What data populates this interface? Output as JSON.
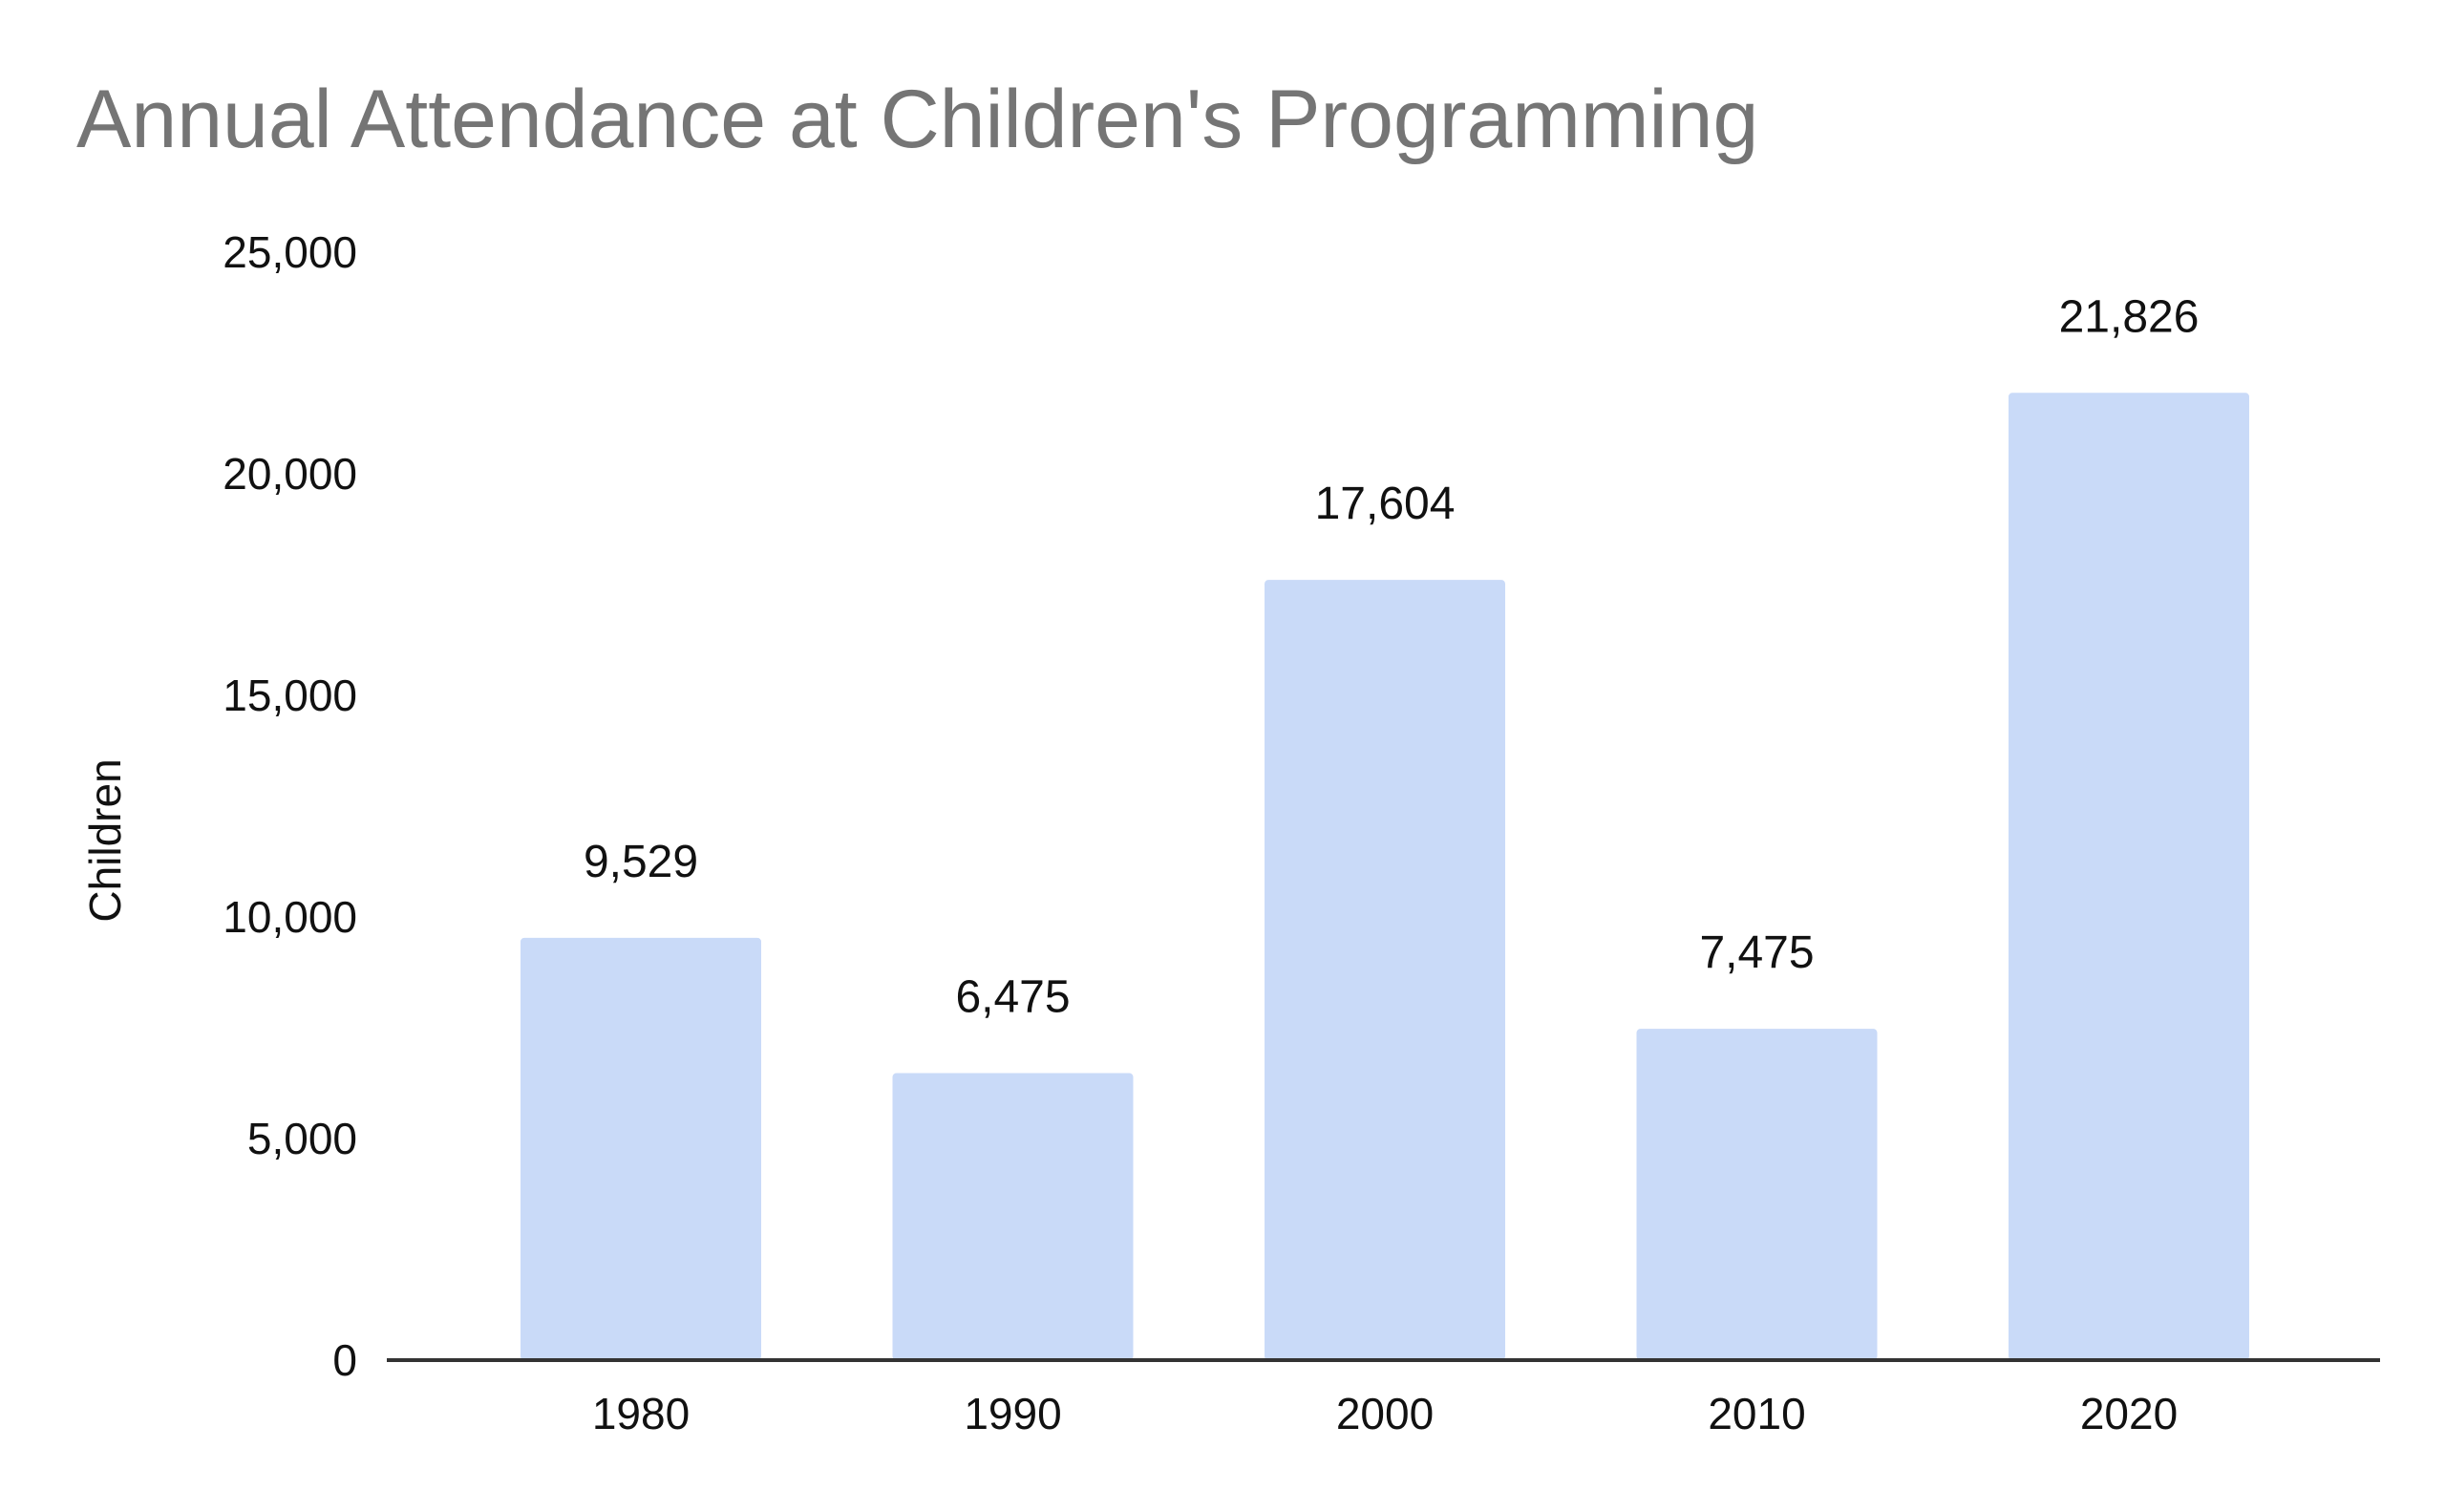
{
  "chart_data": {
    "type": "bar",
    "title": "Annual Attendance at Children's Programming",
    "xlabel": "",
    "ylabel": "Children",
    "categories": [
      "1980",
      "1990",
      "2000",
      "2010",
      "2020"
    ],
    "values": [
      9529,
      6475,
      17604,
      7475,
      21826
    ],
    "data_labels": [
      "9,529",
      "6,475",
      "17,604",
      "7,475",
      "21,826"
    ],
    "ylim": [
      0,
      25000
    ],
    "yticks": [
      0,
      5000,
      10000,
      15000,
      20000,
      25000
    ],
    "ytick_labels": [
      "0",
      "5,000",
      "10,000",
      "15,000",
      "20,000",
      "25,000"
    ],
    "grid": false,
    "legend": "none",
    "colors": {
      "bar": "#c9daf8",
      "title": "#757575",
      "axis": "#333333",
      "text": "#111111"
    }
  }
}
